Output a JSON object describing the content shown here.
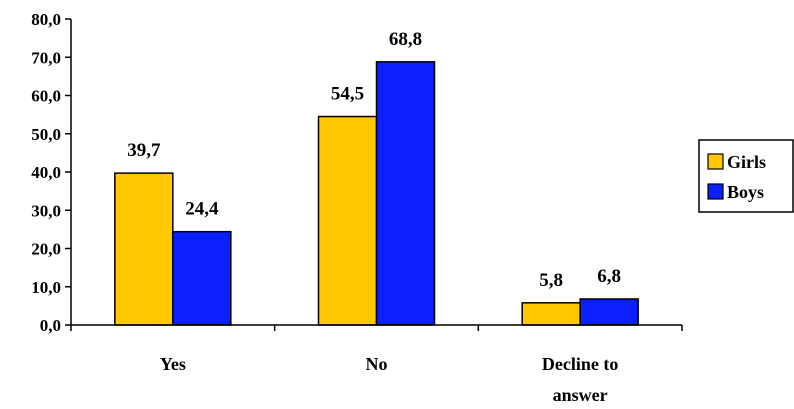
{
  "chart_data": {
    "type": "bar",
    "categories": [
      [
        "Yes"
      ],
      [
        "No"
      ],
      [
        "Decline to",
        "answer"
      ]
    ],
    "series": [
      {
        "name": "Girls",
        "values": [
          39.7,
          54.5,
          5.8
        ],
        "labels": [
          "39,7",
          "54,5",
          "5,8"
        ],
        "color": "#FFC800"
      },
      {
        "name": "Boys",
        "values": [
          24.4,
          68.8,
          6.8
        ],
        "labels": [
          "24,4",
          "68,8",
          "6,8"
        ],
        "color": "#0B1FFF"
      }
    ],
    "yticks": [
      "0,0",
      "10,0",
      "20,0",
      "30,0",
      "40,0",
      "50,0",
      "60,0",
      "70,0",
      "80,0"
    ],
    "ylim": [
      0,
      80
    ],
    "ystep": 10,
    "grid": false,
    "legend": "right",
    "title": "",
    "xlabel": "",
    "ylabel": ""
  }
}
